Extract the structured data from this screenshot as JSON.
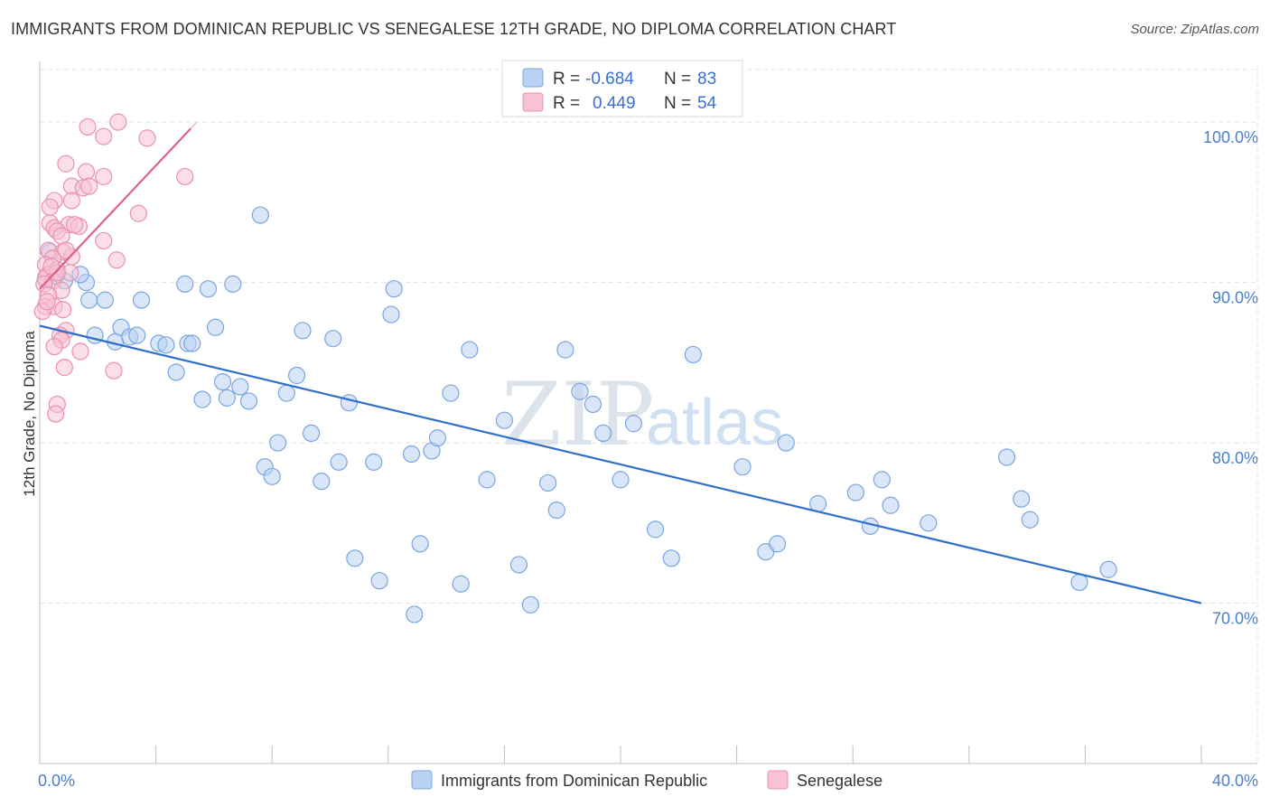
{
  "title": "IMMIGRANTS FROM DOMINICAN REPUBLIC VS SENEGALESE 12TH GRADE, NO DIPLOMA CORRELATION CHART",
  "source": "Source: ZipAtlas.com",
  "watermark": {
    "zip": "ZIP",
    "atlas": "atlas"
  },
  "colors": {
    "blue_fill": "#b9d2f3",
    "blue_stroke": "#7aa5e0",
    "blue_line": "#2f6fcc",
    "pink_fill": "#f7c2d3",
    "pink_stroke": "#e990ad",
    "pink_line": "#e0608a",
    "tick_text": "#4a7fcc"
  },
  "legend": {
    "rows": [
      {
        "r_label": "R =",
        "r_value": "-0.684",
        "n_label": "N =",
        "n_value": "83"
      },
      {
        "r_label": "R =",
        "r_value": "0.449",
        "n_label": "N =",
        "n_value": "54"
      }
    ]
  },
  "chart_data": {
    "type": "scatter",
    "title": "IMMIGRANTS FROM DOMINICAN REPUBLIC VS SENEGALESE 12TH GRADE, NO DIPLOMA CORRELATION CHART",
    "xlabel": "",
    "ylabel": "12th Grade, No Diploma",
    "xlim": [
      0,
      40
    ],
    "ylim": [
      60,
      103.5
    ],
    "x_tick_labels": [
      "0.0%",
      "40.0%"
    ],
    "y_ticks": [
      70,
      80,
      90,
      100
    ],
    "y_tick_labels": [
      "70.0%",
      "80.0%",
      "90.0%",
      "100.0%"
    ],
    "grid": true,
    "legend_position": "top-center",
    "series": [
      {
        "name": "Immigrants from Dominican Republic",
        "color": "#b9d2f3",
        "trend": {
          "x": [
            0,
            40
          ],
          "y": [
            87.3,
            70.0
          ]
        },
        "points": [
          [
            0.35,
            91.9
          ],
          [
            0.55,
            90.4
          ],
          [
            0.85,
            90.1
          ],
          [
            1.7,
            88.9
          ],
          [
            2.25,
            88.9
          ],
          [
            3.5,
            88.9
          ],
          [
            1.9,
            86.7
          ],
          [
            2.6,
            86.3
          ],
          [
            2.8,
            87.2
          ],
          [
            3.1,
            86.6
          ],
          [
            3.35,
            86.7
          ],
          [
            4.1,
            86.2
          ],
          [
            4.35,
            86.1
          ],
          [
            4.7,
            84.4
          ],
          [
            5.0,
            89.9
          ],
          [
            5.1,
            86.2
          ],
          [
            5.25,
            86.2
          ],
          [
            5.6,
            82.7
          ],
          [
            5.8,
            89.6
          ],
          [
            6.05,
            87.2
          ],
          [
            6.3,
            83.8
          ],
          [
            6.45,
            82.8
          ],
          [
            6.65,
            89.9
          ],
          [
            6.9,
            83.5
          ],
          [
            7.2,
            82.6
          ],
          [
            7.6,
            94.2
          ],
          [
            7.75,
            78.5
          ],
          [
            8.0,
            77.9
          ],
          [
            8.2,
            80.0
          ],
          [
            8.5,
            83.1
          ],
          [
            8.85,
            84.2
          ],
          [
            9.05,
            87.0
          ],
          [
            9.35,
            80.6
          ],
          [
            9.7,
            77.6
          ],
          [
            10.1,
            86.5
          ],
          [
            10.3,
            78.8
          ],
          [
            10.65,
            82.5
          ],
          [
            10.85,
            72.8
          ],
          [
            11.5,
            78.8
          ],
          [
            11.7,
            71.4
          ],
          [
            12.1,
            88.0
          ],
          [
            12.2,
            89.6
          ],
          [
            12.8,
            79.3
          ],
          [
            13.1,
            73.7
          ],
          [
            13.5,
            79.5
          ],
          [
            13.7,
            80.3
          ],
          [
            14.15,
            83.1
          ],
          [
            14.5,
            71.2
          ],
          [
            14.8,
            85.8
          ],
          [
            15.4,
            77.7
          ],
          [
            16.0,
            81.4
          ],
          [
            16.5,
            72.4
          ],
          [
            16.9,
            69.9
          ],
          [
            17.5,
            77.5
          ],
          [
            17.8,
            75.8
          ],
          [
            18.1,
            85.8
          ],
          [
            18.6,
            83.2
          ],
          [
            19.05,
            82.4
          ],
          [
            19.4,
            80.6
          ],
          [
            20.0,
            77.7
          ],
          [
            20.45,
            81.2
          ],
          [
            21.2,
            74.6
          ],
          [
            21.75,
            72.8
          ],
          [
            22.5,
            85.5
          ],
          [
            24.2,
            78.5
          ],
          [
            25.0,
            73.2
          ],
          [
            25.4,
            73.7
          ],
          [
            25.7,
            80.0
          ],
          [
            26.8,
            76.2
          ],
          [
            28.1,
            76.9
          ],
          [
            28.6,
            74.8
          ],
          [
            29.0,
            77.7
          ],
          [
            29.3,
            76.1
          ],
          [
            30.6,
            75.0
          ],
          [
            33.3,
            79.1
          ],
          [
            33.8,
            76.5
          ],
          [
            34.1,
            75.2
          ],
          [
            35.8,
            71.3
          ],
          [
            36.8,
            72.1
          ],
          [
            0.2,
            90.2
          ],
          [
            1.6,
            90.0
          ],
          [
            1.4,
            90.5
          ],
          [
            12.9,
            69.3
          ]
        ]
      },
      {
        "name": "Senegalese",
        "color": "#f7c2d3",
        "trend": {
          "x": [
            0,
            5.2
          ],
          "y": [
            89.6,
            99.6
          ]
        },
        "points": [
          [
            1.65,
            99.7
          ],
          [
            2.7,
            100.0
          ],
          [
            2.2,
            99.1
          ],
          [
            3.7,
            99.0
          ],
          [
            0.9,
            97.4
          ],
          [
            1.6,
            96.9
          ],
          [
            2.2,
            96.6
          ],
          [
            1.1,
            96.0
          ],
          [
            1.5,
            95.9
          ],
          [
            1.7,
            96.0
          ],
          [
            0.5,
            95.1
          ],
          [
            1.1,
            95.1
          ],
          [
            0.35,
            94.7
          ],
          [
            3.4,
            94.3
          ],
          [
            0.35,
            93.7
          ],
          [
            0.5,
            93.4
          ],
          [
            1.0,
            93.6
          ],
          [
            1.35,
            93.5
          ],
          [
            0.6,
            93.2
          ],
          [
            0.75,
            92.9
          ],
          [
            2.2,
            92.6
          ],
          [
            0.3,
            92.0
          ],
          [
            0.8,
            91.9
          ],
          [
            0.45,
            91.5
          ],
          [
            1.1,
            91.6
          ],
          [
            2.65,
            91.4
          ],
          [
            0.2,
            91.1
          ],
          [
            0.6,
            90.8
          ],
          [
            0.3,
            90.5
          ],
          [
            1.05,
            90.6
          ],
          [
            0.2,
            90.3
          ],
          [
            0.45,
            90.1
          ],
          [
            0.15,
            89.9
          ],
          [
            0.75,
            89.5
          ],
          [
            0.3,
            89.2
          ],
          [
            0.2,
            88.5
          ],
          [
            0.5,
            88.5
          ],
          [
            0.8,
            88.3
          ],
          [
            0.1,
            88.2
          ],
          [
            0.9,
            87.0
          ],
          [
            0.7,
            86.7
          ],
          [
            0.75,
            86.4
          ],
          [
            0.5,
            86.0
          ],
          [
            1.4,
            85.7
          ],
          [
            0.85,
            84.7
          ],
          [
            2.55,
            84.5
          ],
          [
            0.6,
            82.4
          ],
          [
            0.55,
            81.8
          ],
          [
            5.0,
            96.6
          ],
          [
            0.6,
            90.6
          ],
          [
            0.9,
            92.0
          ],
          [
            1.2,
            93.6
          ],
          [
            0.4,
            91.0
          ],
          [
            0.25,
            88.8
          ]
        ]
      }
    ]
  }
}
